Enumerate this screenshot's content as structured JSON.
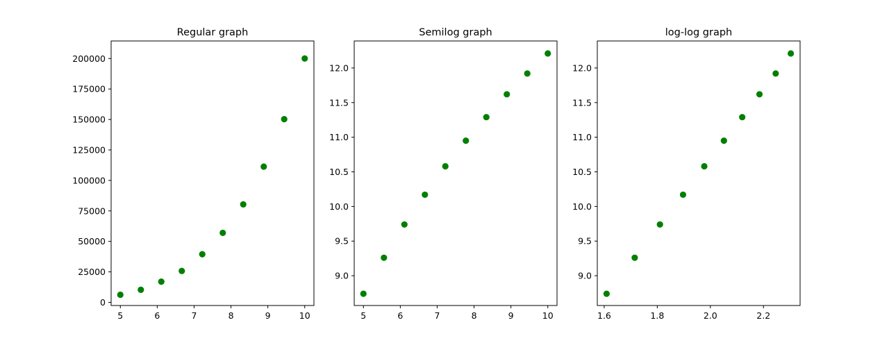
{
  "chart_data": [
    {
      "type": "scatter",
      "title": "Regular graph",
      "xlabel": "",
      "ylabel": "",
      "x": [
        5.0,
        5.556,
        6.111,
        6.667,
        7.222,
        7.778,
        8.333,
        8.889,
        9.444,
        10.0
      ],
      "y": [
        6250,
        10288,
        16993,
        25720,
        39460,
        57010,
        80350,
        111300,
        150250,
        200000
      ],
      "xlim": [
        4.75,
        10.25
      ],
      "ylim": [
        -2600,
        214400
      ],
      "xticks": [
        5,
        6,
        7,
        8,
        9,
        10
      ],
      "xtick_labels": [
        "5",
        "6",
        "7",
        "8",
        "9",
        "10"
      ],
      "yticks": [
        0,
        25000,
        50000,
        75000,
        100000,
        125000,
        150000,
        175000,
        200000
      ],
      "ytick_labels": [
        "0",
        "25000",
        "50000",
        "75000",
        "100000",
        "125000",
        "150000",
        "175000",
        "200000"
      ],
      "marker_color": "#008000",
      "grid": false
    },
    {
      "type": "scatter",
      "title": "Semilog graph",
      "xlabel": "",
      "ylabel": "",
      "x": [
        5.0,
        5.556,
        6.111,
        6.667,
        7.222,
        7.778,
        8.333,
        8.889,
        9.444,
        10.0
      ],
      "y": [
        8.74,
        9.26,
        9.74,
        10.17,
        10.58,
        10.95,
        11.29,
        11.62,
        11.92,
        12.21
      ],
      "xlim": [
        4.75,
        10.25
      ],
      "ylim": [
        8.57,
        12.39
      ],
      "xticks": [
        5,
        6,
        7,
        8,
        9,
        10
      ],
      "xtick_labels": [
        "5",
        "6",
        "7",
        "8",
        "9",
        "10"
      ],
      "yticks": [
        9.0,
        9.5,
        10.0,
        10.5,
        11.0,
        11.5,
        12.0
      ],
      "ytick_labels": [
        "9.0",
        "9.5",
        "10.0",
        "10.5",
        "11.0",
        "11.5",
        "12.0"
      ],
      "marker_color": "#008000",
      "grid": false
    },
    {
      "type": "scatter",
      "title": "log-log graph",
      "xlabel": "",
      "ylabel": "",
      "x": [
        1.609,
        1.715,
        1.81,
        1.897,
        1.977,
        2.051,
        2.12,
        2.185,
        2.246,
        2.303
      ],
      "y": [
        8.74,
        9.26,
        9.74,
        10.17,
        10.58,
        10.95,
        11.29,
        11.62,
        11.92,
        12.21
      ],
      "xlim": [
        1.574,
        2.338
      ],
      "ylim": [
        8.57,
        12.39
      ],
      "xticks": [
        1.6,
        1.8,
        2.0,
        2.2
      ],
      "xtick_labels": [
        "1.6",
        "1.8",
        "2.0",
        "2.2"
      ],
      "yticks": [
        9.0,
        9.5,
        10.0,
        10.5,
        11.0,
        11.5,
        12.0
      ],
      "ytick_labels": [
        "9.0",
        "9.5",
        "10.0",
        "10.5",
        "11.0",
        "11.5",
        "12.0"
      ],
      "marker_color": "#008000",
      "grid": false
    }
  ]
}
